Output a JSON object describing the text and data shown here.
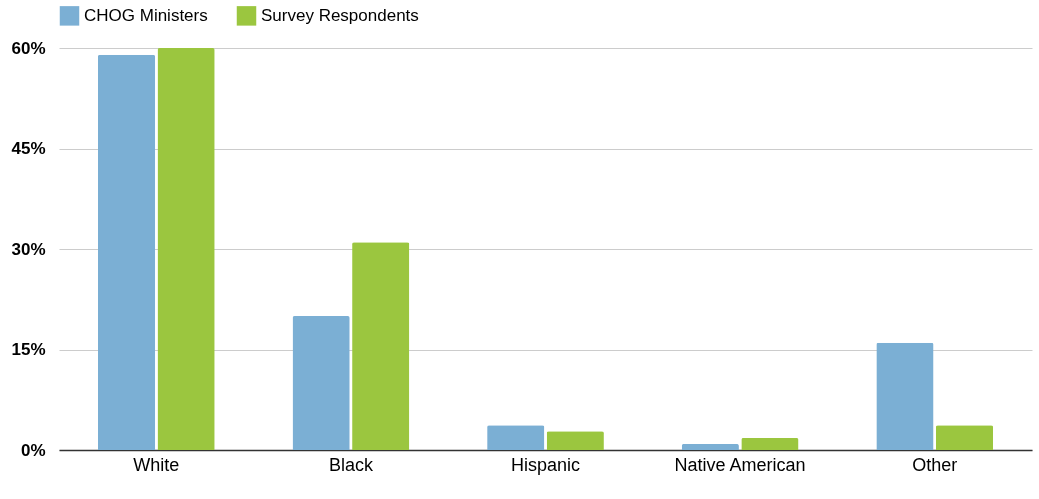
{
  "chart_data": {
    "type": "bar",
    "categories": [
      "White",
      "Black",
      "Hispanic",
      "Native American",
      "Other"
    ],
    "series": [
      {
        "name": "CHOG Ministers",
        "color": "#7bafd4",
        "values": [
          59,
          20,
          3.7,
          0.9,
          16
        ]
      },
      {
        "name": "Survey Respondents",
        "color": "#9bc63f",
        "values": [
          60,
          31,
          2.8,
          1.8,
          3.7
        ]
      }
    ],
    "ylim": [
      0,
      60
    ],
    "yticks": [
      {
        "value": 0,
        "label": "0%"
      },
      {
        "value": 15,
        "label": "15%"
      },
      {
        "value": 30,
        "label": "30%"
      },
      {
        "value": 45,
        "label": "45%"
      },
      {
        "value": 60,
        "label": "60%"
      }
    ],
    "grid": "y",
    "legend": "top"
  }
}
